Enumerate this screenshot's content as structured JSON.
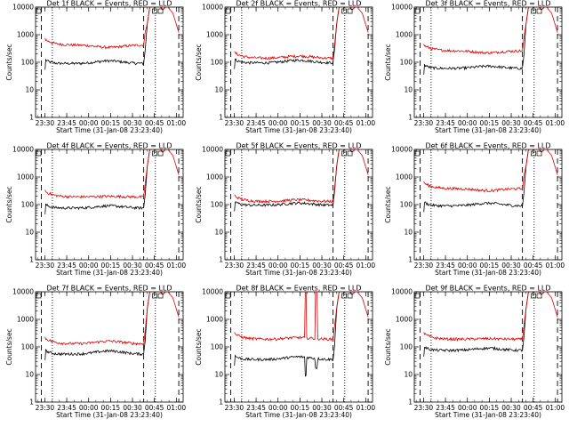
{
  "chart_data": {
    "type": "line",
    "panels": [
      {
        "title": "Det 1f BLACK = Events, RED = LLD",
        "black_base": 90,
        "red_base": 420,
        "black_bump": 1.25,
        "red_bump": 0.82,
        "spikes": []
      },
      {
        "title": "Det 2f BLACK = Events, RED = LLD",
        "black_base": 95,
        "red_base": 140,
        "black_bump": 1.25,
        "red_bump": 1.2,
        "spikes": []
      },
      {
        "title": "Det 3f BLACK = Events, RED = LLD",
        "black_base": 60,
        "red_base": 260,
        "black_bump": 1.2,
        "red_bump": 0.85,
        "spikes": []
      },
      {
        "title": "Det 4f BLACK = Events, RED = LLD",
        "black_base": 75,
        "red_base": 190,
        "black_bump": 1.2,
        "red_bump": 1.05,
        "spikes": []
      },
      {
        "title": "Det 5f BLACK = Events, RED = LLD",
        "black_base": 95,
        "red_base": 130,
        "black_bump": 1.2,
        "red_bump": 1.15,
        "spikes": []
      },
      {
        "title": "Det 6f BLACK = Events, RED = LLD",
        "black_base": 90,
        "red_base": 380,
        "black_bump": 1.25,
        "red_bump": 0.85,
        "spikes": []
      },
      {
        "title": "Det 7f BLACK = Events, RED = LLD",
        "black_base": 55,
        "red_base": 130,
        "black_bump": 1.3,
        "red_bump": 1.25,
        "spikes": []
      },
      {
        "title": "Det 8f BLACK = Events, RED = LLD",
        "black_base": 35,
        "red_base": 190,
        "black_bump": 1.25,
        "red_bump": 1.15,
        "spikes": [
          0.72,
          0.83
        ]
      },
      {
        "title": "Det 9f BLACK = Events, RED = LLD",
        "black_base": 75,
        "red_base": 190,
        "black_bump": 1.2,
        "red_bump": 1.05,
        "spikes": []
      }
    ],
    "xlabel": "Start Time (31-Jan-08 23:23:40)",
    "ylabel": "Counts/sec",
    "x_tick_labels": [
      "23:30",
      "23:45",
      "00:00",
      "00:15",
      "00:30",
      "00:45",
      "01:00"
    ],
    "x_tick_minutes": [
      6.33,
      21.33,
      36.33,
      51.33,
      66.33,
      81.33,
      96.33
    ],
    "xlim_minutes": [
      0,
      101
    ],
    "y_tick_labels": [
      "1",
      "10",
      "100",
      "1000",
      "10000"
    ],
    "ylim": [
      1,
      10000
    ],
    "y_scale": "log",
    "dashed_lines_minutes": [
      4,
      74,
      98
    ],
    "dotted_lines_minutes": [
      11.5,
      82
    ],
    "black_color": "#000000",
    "red_color": "#e00000"
  }
}
